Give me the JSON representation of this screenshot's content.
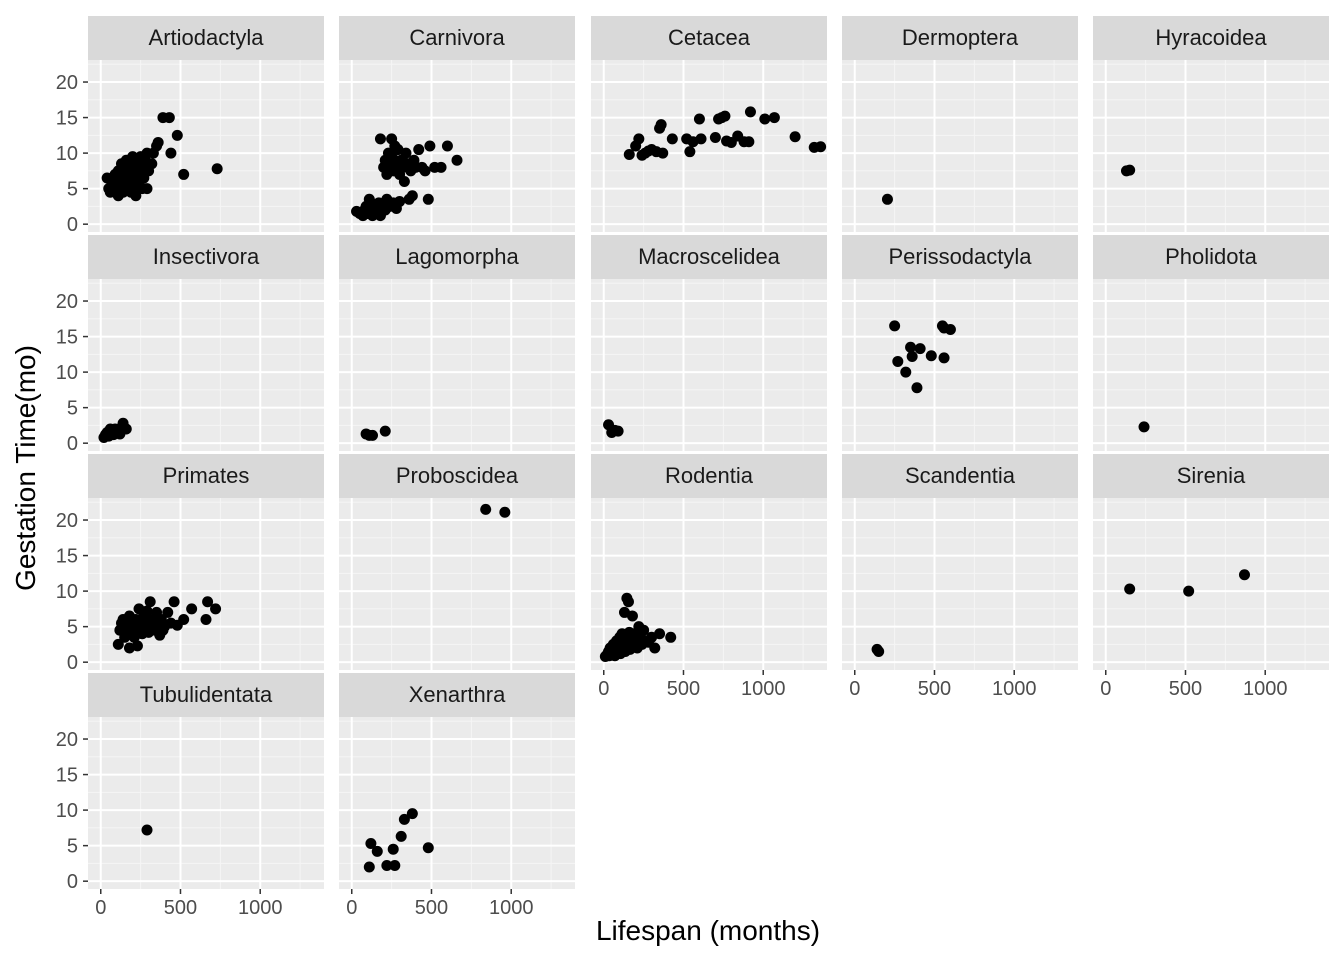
{
  "chart_data": {
    "type": "scatter",
    "facet": "order",
    "xlabel": "Lifespan (months)",
    "ylabel": "Gestation Time(mo)",
    "xlim": [
      -80,
      1400
    ],
    "ylim": [
      -1.1,
      23.1
    ],
    "x_ticks": [
      0,
      500,
      1000
    ],
    "y_ticks": [
      0,
      5,
      10,
      15,
      20
    ],
    "grid": true,
    "colors": {
      "panel": "#ebebeb",
      "strip": "#d9d9d9",
      "grid_major": "#ffffff",
      "point": "#000000"
    },
    "panels": [
      {
        "name": "Artiodactyla",
        "points": [
          [
            40,
            6.5
          ],
          [
            50,
            5
          ],
          [
            60,
            4.5
          ],
          [
            70,
            6
          ],
          [
            80,
            5.5
          ],
          [
            90,
            7
          ],
          [
            100,
            6.5
          ],
          [
            110,
            4
          ],
          [
            110,
            7.5
          ],
          [
            120,
            5
          ],
          [
            130,
            6
          ],
          [
            130,
            8.5
          ],
          [
            140,
            7
          ],
          [
            140,
            4.5
          ],
          [
            150,
            5.5
          ],
          [
            150,
            8
          ],
          [
            160,
            6.5
          ],
          [
            160,
            9
          ],
          [
            170,
            5
          ],
          [
            170,
            7.5
          ],
          [
            180,
            6
          ],
          [
            180,
            8.5
          ],
          [
            190,
            4.5
          ],
          [
            190,
            7
          ],
          [
            200,
            5.5
          ],
          [
            200,
            9.5
          ],
          [
            210,
            6.5
          ],
          [
            210,
            8
          ],
          [
            220,
            4
          ],
          [
            220,
            7
          ],
          [
            230,
            5.5
          ],
          [
            230,
            9
          ],
          [
            240,
            6
          ],
          [
            240,
            8
          ],
          [
            250,
            7
          ],
          [
            250,
            9.5
          ],
          [
            260,
            5
          ],
          [
            260,
            8.5
          ],
          [
            270,
            6.5
          ],
          [
            280,
            9
          ],
          [
            290,
            5
          ],
          [
            290,
            10
          ],
          [
            300,
            7.5
          ],
          [
            320,
            8.5
          ],
          [
            330,
            10
          ],
          [
            350,
            11
          ],
          [
            360,
            11.5
          ],
          [
            390,
            15
          ],
          [
            430,
            15
          ],
          [
            440,
            10
          ],
          [
            480,
            12.5
          ],
          [
            520,
            7
          ],
          [
            730,
            7.8
          ]
        ]
      },
      {
        "name": "Carnivora",
        "points": [
          [
            30,
            1.8
          ],
          [
            50,
            1.5
          ],
          [
            70,
            1.2
          ],
          [
            80,
            2
          ],
          [
            90,
            2.5
          ],
          [
            100,
            1.5
          ],
          [
            110,
            3.5
          ],
          [
            120,
            2
          ],
          [
            130,
            1.2
          ],
          [
            140,
            2.8
          ],
          [
            150,
            2
          ],
          [
            160,
            1.5
          ],
          [
            170,
            3
          ],
          [
            180,
            12
          ],
          [
            180,
            1.2
          ],
          [
            190,
            2.5
          ],
          [
            200,
            8
          ],
          [
            210,
            9
          ],
          [
            210,
            2
          ],
          [
            220,
            7
          ],
          [
            220,
            3.5
          ],
          [
            230,
            10
          ],
          [
            240,
            8.5
          ],
          [
            240,
            2.5
          ],
          [
            250,
            12
          ],
          [
            250,
            9.5
          ],
          [
            260,
            7.5
          ],
          [
            260,
            3
          ],
          [
            270,
            11
          ],
          [
            270,
            9
          ],
          [
            280,
            8
          ],
          [
            280,
            2.2
          ],
          [
            290,
            10.5
          ],
          [
            300,
            7
          ],
          [
            300,
            3.2
          ],
          [
            310,
            9
          ],
          [
            320,
            8
          ],
          [
            330,
            6
          ],
          [
            340,
            10
          ],
          [
            350,
            8.5
          ],
          [
            360,
            3.5
          ],
          [
            370,
            7.5
          ],
          [
            380,
            4
          ],
          [
            390,
            9
          ],
          [
            400,
            8
          ],
          [
            420,
            10.5
          ],
          [
            440,
            8
          ],
          [
            460,
            7.5
          ],
          [
            480,
            3.5
          ],
          [
            490,
            11
          ],
          [
            520,
            8
          ],
          [
            560,
            8
          ],
          [
            600,
            11
          ],
          [
            660,
            9
          ]
        ]
      },
      {
        "name": "Cetacea",
        "points": [
          [
            160,
            9.8
          ],
          [
            200,
            11
          ],
          [
            220,
            12
          ],
          [
            240,
            9.7
          ],
          [
            260,
            10
          ],
          [
            280,
            10.3
          ],
          [
            300,
            10.5
          ],
          [
            330,
            10.2
          ],
          [
            350,
            13.5
          ],
          [
            360,
            14
          ],
          [
            370,
            10
          ],
          [
            430,
            12
          ],
          [
            520,
            12
          ],
          [
            540,
            10.2
          ],
          [
            560,
            11.6
          ],
          [
            600,
            14.8
          ],
          [
            610,
            12
          ],
          [
            700,
            12.2
          ],
          [
            720,
            14.8
          ],
          [
            740,
            15
          ],
          [
            760,
            15.2
          ],
          [
            770,
            11.7
          ],
          [
            800,
            11.5
          ],
          [
            840,
            12.4
          ],
          [
            880,
            11.6
          ],
          [
            910,
            11.6
          ],
          [
            920,
            15.8
          ],
          [
            1010,
            14.8
          ],
          [
            1070,
            15
          ],
          [
            1200,
            12.3
          ],
          [
            1320,
            10.8
          ],
          [
            1360,
            10.9
          ]
        ]
      },
      {
        "name": "Dermoptera",
        "points": [
          [
            205,
            3.5
          ]
        ]
      },
      {
        "name": "Hyracoidea",
        "points": [
          [
            130,
            7.5
          ],
          [
            150,
            7.6
          ]
        ]
      },
      {
        "name": "Insectivora",
        "points": [
          [
            20,
            0.8
          ],
          [
            30,
            1.2
          ],
          [
            40,
            1.5
          ],
          [
            50,
            1
          ],
          [
            60,
            2
          ],
          [
            70,
            1.5
          ],
          [
            80,
            1.2
          ],
          [
            90,
            2
          ],
          [
            100,
            1.8
          ],
          [
            110,
            1.5
          ],
          [
            120,
            1.3
          ],
          [
            130,
            2.2
          ],
          [
            140,
            2.8
          ],
          [
            160,
            2
          ]
        ]
      },
      {
        "name": "Lagomorpha",
        "points": [
          [
            90,
            1.3
          ],
          [
            110,
            1.1
          ],
          [
            130,
            1.1
          ],
          [
            210,
            1.7
          ]
        ]
      },
      {
        "name": "Macroscelidea",
        "points": [
          [
            30,
            2.6
          ],
          [
            50,
            1.5
          ],
          [
            70,
            1.8
          ],
          [
            90,
            1.7
          ]
        ]
      },
      {
        "name": "Perissodactyla",
        "points": [
          [
            250,
            16.5
          ],
          [
            270,
            11.5
          ],
          [
            320,
            10
          ],
          [
            350,
            13.5
          ],
          [
            360,
            12.2
          ],
          [
            390,
            7.8
          ],
          [
            410,
            13.3
          ],
          [
            480,
            12.3
          ],
          [
            550,
            16.5
          ],
          [
            560,
            16.2
          ],
          [
            560,
            12
          ],
          [
            600,
            16
          ]
        ]
      },
      {
        "name": "Pholidota",
        "points": [
          [
            240,
            2.3
          ]
        ]
      },
      {
        "name": "Primates",
        "points": [
          [
            110,
            2.5
          ],
          [
            120,
            4.5
          ],
          [
            130,
            5.5
          ],
          [
            140,
            6
          ],
          [
            150,
            3.5
          ],
          [
            160,
            4.8
          ],
          [
            170,
            5.2
          ],
          [
            180,
            2
          ],
          [
            180,
            6.5
          ],
          [
            190,
            4
          ],
          [
            200,
            5.5
          ],
          [
            210,
            3.5
          ],
          [
            220,
            6
          ],
          [
            230,
            2.3
          ],
          [
            230,
            4.5
          ],
          [
            240,
            7.5
          ],
          [
            250,
            5
          ],
          [
            260,
            4
          ],
          [
            270,
            6.5
          ],
          [
            280,
            5.5
          ],
          [
            290,
            7.2
          ],
          [
            300,
            4.2
          ],
          [
            310,
            8.5
          ],
          [
            320,
            6
          ],
          [
            330,
            5
          ],
          [
            340,
            4.5
          ],
          [
            350,
            7
          ],
          [
            360,
            5.5
          ],
          [
            370,
            3.8
          ],
          [
            380,
            6
          ],
          [
            390,
            4.5
          ],
          [
            400,
            5
          ],
          [
            420,
            7
          ],
          [
            440,
            5.5
          ],
          [
            460,
            8.5
          ],
          [
            480,
            5.2
          ],
          [
            520,
            6
          ],
          [
            570,
            7.5
          ],
          [
            660,
            6
          ],
          [
            670,
            8.5
          ],
          [
            720,
            7.5
          ]
        ]
      },
      {
        "name": "Proboscidea",
        "points": [
          [
            840,
            21.5
          ],
          [
            960,
            21.1
          ]
        ]
      },
      {
        "name": "Rodentia",
        "points": [
          [
            10,
            0.8
          ],
          [
            20,
            1
          ],
          [
            25,
            1.2
          ],
          [
            30,
            1.5
          ],
          [
            35,
            0.9
          ],
          [
            40,
            2
          ],
          [
            45,
            1.2
          ],
          [
            50,
            1.8
          ],
          [
            55,
            1
          ],
          [
            60,
            2.5
          ],
          [
            65,
            1.5
          ],
          [
            70,
            0.9
          ],
          [
            75,
            2
          ],
          [
            80,
            3
          ],
          [
            85,
            1.3
          ],
          [
            90,
            2.2
          ],
          [
            95,
            1.7
          ],
          [
            100,
            3.5
          ],
          [
            105,
            1.2
          ],
          [
            110,
            2.8
          ],
          [
            115,
            4
          ],
          [
            120,
            1.8
          ],
          [
            125,
            2.5
          ],
          [
            130,
            7
          ],
          [
            135,
            1.5
          ],
          [
            140,
            3.2
          ],
          [
            145,
            9
          ],
          [
            150,
            2.2
          ],
          [
            155,
            8.5
          ],
          [
            160,
            4.2
          ],
          [
            165,
            1.8
          ],
          [
            170,
            3
          ],
          [
            180,
            6.5
          ],
          [
            185,
            2.5
          ],
          [
            190,
            4
          ],
          [
            200,
            3.2
          ],
          [
            210,
            2
          ],
          [
            220,
            5
          ],
          [
            230,
            3.5
          ],
          [
            240,
            2.5
          ],
          [
            250,
            4.5
          ],
          [
            260,
            3
          ],
          [
            280,
            2.8
          ],
          [
            300,
            3.5
          ],
          [
            320,
            2
          ],
          [
            350,
            4
          ],
          [
            420,
            3.5
          ]
        ]
      },
      {
        "name": "Scandentia",
        "points": [
          [
            140,
            1.8
          ],
          [
            150,
            1.5
          ]
        ]
      },
      {
        "name": "Sirenia",
        "points": [
          [
            150,
            10.3
          ],
          [
            520,
            10
          ],
          [
            870,
            12.3
          ]
        ]
      },
      {
        "name": "Tubulidentata",
        "points": [
          [
            290,
            7.2
          ]
        ]
      },
      {
        "name": "Xenarthra",
        "points": [
          [
            110,
            2
          ],
          [
            120,
            5.3
          ],
          [
            160,
            4.2
          ],
          [
            220,
            2.2
          ],
          [
            260,
            4.5
          ],
          [
            270,
            2.2
          ],
          [
            310,
            6.3
          ],
          [
            330,
            8.7
          ],
          [
            380,
            9.5
          ],
          [
            480,
            4.7
          ]
        ]
      }
    ]
  }
}
